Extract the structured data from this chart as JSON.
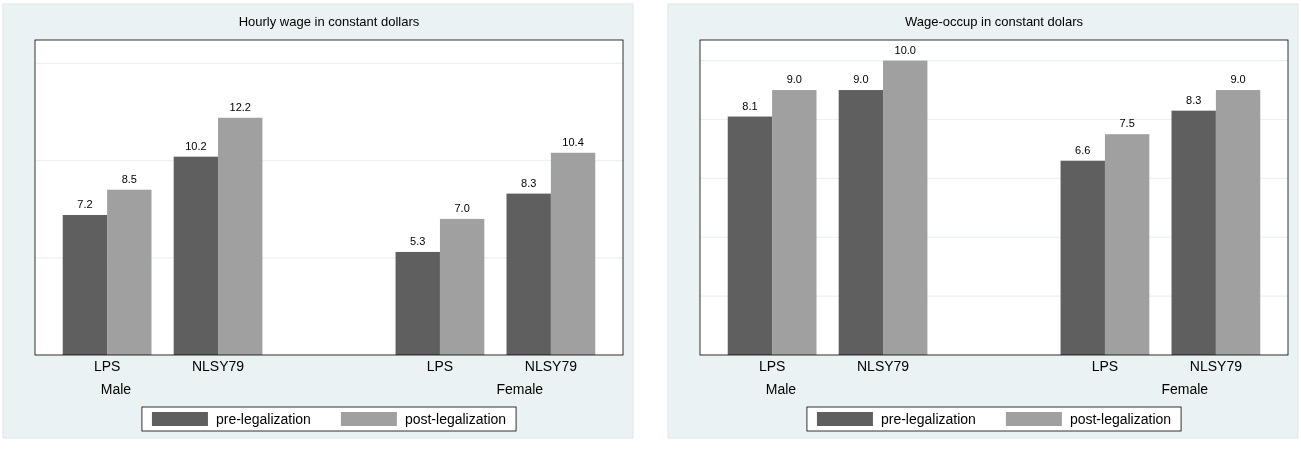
{
  "chart_data": [
    {
      "type": "bar",
      "title": "Hourly wage in constant dollars",
      "categories": [
        "LPS",
        "NLSY79",
        null,
        "LPS",
        "NLSY79"
      ],
      "series": [
        {
          "name": "pre-legalization",
          "color": "#5f5f5f",
          "values": [
            7.2,
            10.2,
            null,
            5.3,
            8.3
          ],
          "value_labels": [
            "7.2",
            "10.2",
            null,
            "5.3",
            "8.3"
          ]
        },
        {
          "name": "post-legalization",
          "color": "#a0a0a0",
          "values": [
            8.5,
            12.2,
            null,
            7.0,
            10.4
          ],
          "value_labels": [
            "8.5",
            "12.2",
            null,
            "7.0",
            "10.4"
          ]
        }
      ],
      "ylim": [
        0,
        16.2
      ],
      "yticks": [
        {
          "value": 0,
          "label": null
        },
        {
          "value": 5,
          "label": null
        },
        {
          "value": 10,
          "label": null
        },
        {
          "value": 15,
          "label": null
        }
      ],
      "grid": "y",
      "tick_labels": "x",
      "legend": "bottom",
      "annotations": [
        "Male",
        "Female"
      ]
    },
    {
      "type": "bar",
      "title": "Wage-occup in constant dolars",
      "categories": [
        "LPS",
        "NLSY79",
        null,
        "LPS",
        "NLSY79"
      ],
      "series": [
        {
          "name": "pre-legalization",
          "color": "#5f5f5f",
          "values": [
            8.1,
            9.0,
            null,
            6.6,
            8.3
          ],
          "value_labels": [
            "8.1",
            "9.0",
            null,
            "6.6",
            "8.3"
          ]
        },
        {
          "name": "post-legalization",
          "color": "#a0a0a0",
          "values": [
            9.0,
            10.0,
            null,
            7.5,
            9.0
          ],
          "value_labels": [
            "9.0",
            "10.0",
            null,
            "7.5",
            "9.0"
          ]
        }
      ],
      "ylim": [
        0,
        10.7
      ],
      "yticks": [
        {
          "value": 0,
          "label": null
        },
        {
          "value": 2,
          "label": null
        },
        {
          "value": 4,
          "label": null
        },
        {
          "value": 6,
          "label": null
        },
        {
          "value": 8,
          "label": null
        },
        {
          "value": 10,
          "label": null
        }
      ],
      "grid": "y",
      "tick_labels": "x",
      "legend": "bottom",
      "annotations": [
        "Male",
        "Female"
      ]
    }
  ]
}
